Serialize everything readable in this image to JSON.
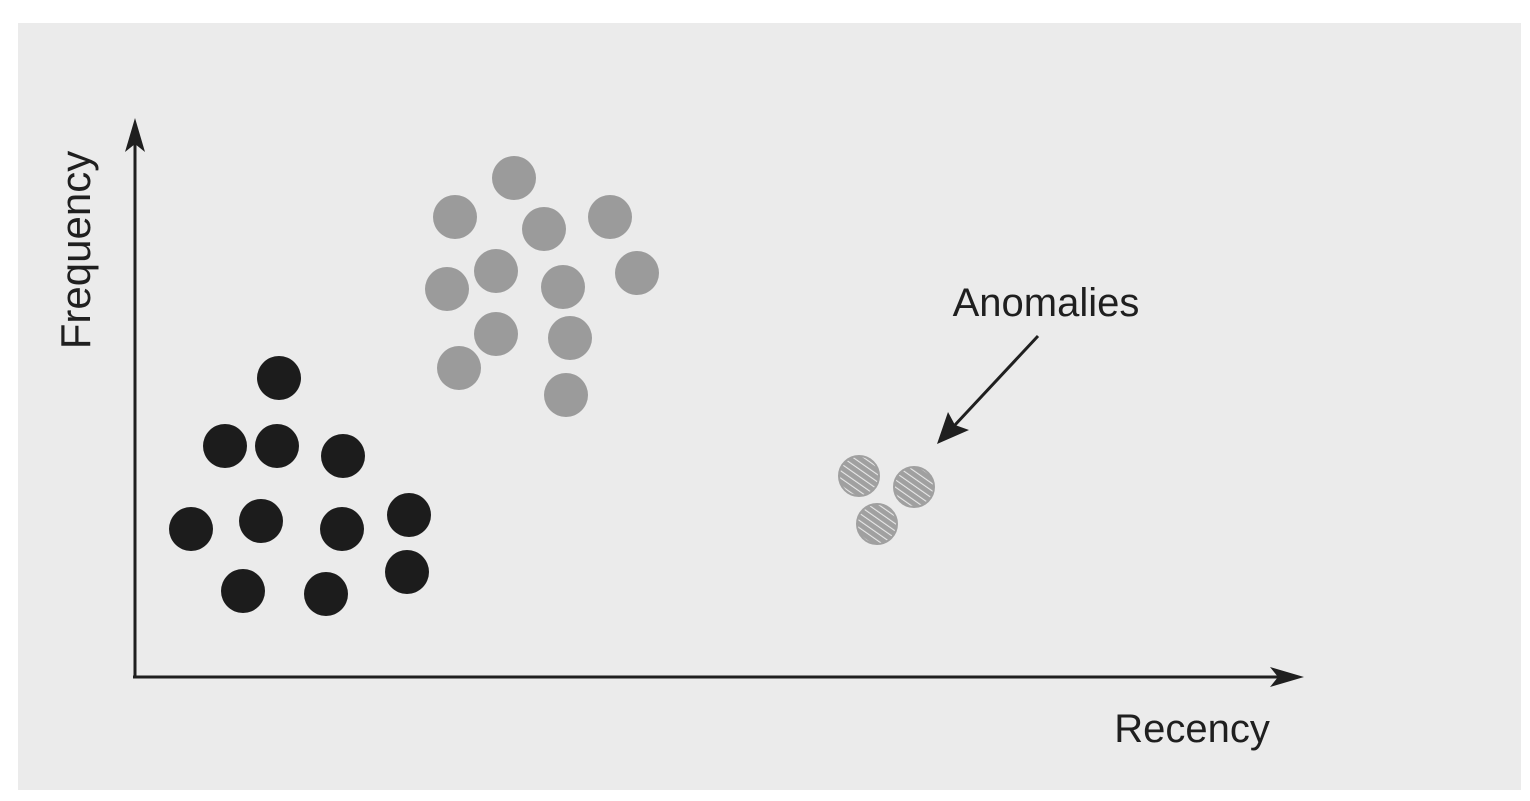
{
  "labels": {
    "y_axis": "Frequency",
    "x_axis": "Recency",
    "annotation": "Anomalies"
  },
  "colors": {
    "background": "#ebebeb",
    "axis": "#1f1f1f",
    "cluster_dark": "#1c1c1c",
    "cluster_gray": "#9b9b9b",
    "anomaly_fill": "#a0a0a0",
    "anomaly_hatch": "#e8e8e8"
  },
  "icons": {
    "arrowhead": "triangle-arrowhead",
    "anomaly_marker": "hatched-circle"
  }
}
